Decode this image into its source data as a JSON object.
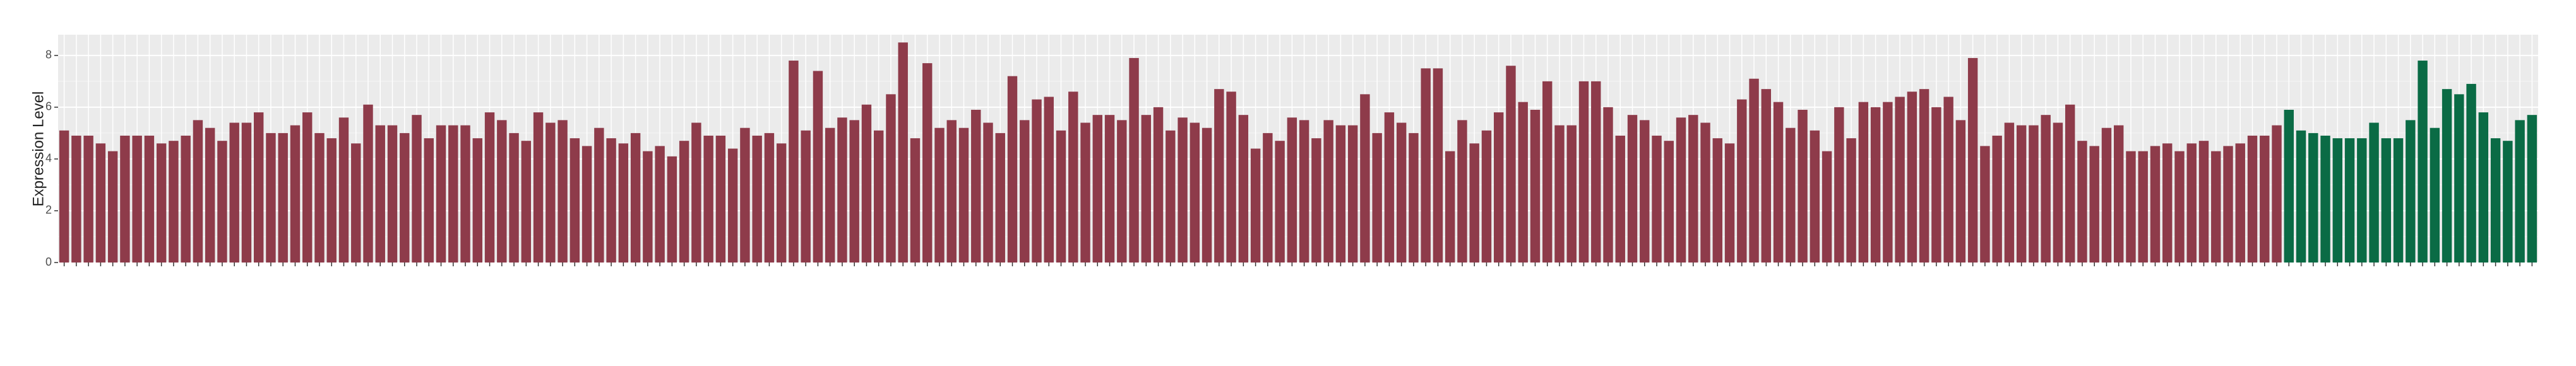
{
  "chart_data": {
    "type": "bar",
    "ylabel": "Expression Level",
    "values": [
      5.1,
      4.9,
      4.9,
      4.6,
      4.3,
      4.9,
      4.9,
      4.9,
      4.6,
      4.7,
      4.9,
      5.5,
      5.2,
      4.7,
      5.4,
      5.4,
      5.8,
      5.0,
      5.0,
      5.3,
      5.8,
      5.0,
      4.8,
      5.6,
      4.6,
      6.1,
      5.3,
      5.3,
      5.0,
      5.7,
      4.8,
      5.3,
      5.3,
      5.3,
      4.8,
      5.8,
      5.5,
      5.0,
      4.7,
      5.8,
      5.4,
      5.5,
      4.8,
      4.5,
      5.2,
      4.8,
      4.6,
      5.0,
      4.3,
      4.5,
      4.1,
      4.7,
      5.4,
      4.9,
      4.9,
      4.4,
      5.2,
      4.9,
      5.0,
      4.6,
      7.8,
      5.1,
      7.4,
      5.2,
      5.6,
      5.5,
      6.1,
      5.1,
      6.5,
      8.5,
      4.8,
      7.7,
      5.2,
      5.5,
      5.2,
      5.9,
      5.4,
      5.0,
      7.2,
      5.5,
      6.3,
      6.4,
      5.1,
      6.6,
      5.4,
      5.7,
      5.7,
      5.5,
      7.9,
      5.7,
      6.0,
      5.1,
      5.6,
      5.4,
      5.2,
      6.7,
      6.6,
      5.7,
      4.4,
      5.0,
      4.7,
      5.6,
      5.5,
      4.8,
      5.5,
      5.3,
      5.3,
      6.5,
      5.0,
      5.8,
      5.4,
      5.0,
      7.5,
      7.5,
      4.3,
      5.5,
      4.6,
      5.1,
      5.8,
      7.6,
      6.2,
      5.9,
      7.0,
      5.3,
      5.3,
      7.0,
      7.0,
      6.0,
      4.9,
      5.7,
      5.5,
      4.9,
      4.7,
      5.6,
      5.7,
      5.4,
      4.8,
      4.6,
      6.3,
      7.1,
      6.7,
      6.2,
      5.2,
      5.9,
      5.1,
      4.3,
      6.0,
      4.8,
      6.2,
      6.0,
      6.2,
      6.4,
      6.6,
      6.7,
      6.0,
      6.4,
      5.5,
      7.9,
      4.5,
      4.9,
      5.4,
      5.3,
      5.3,
      5.7,
      5.4,
      6.1,
      4.7,
      4.5,
      5.2,
      5.3,
      4.3,
      4.3,
      4.5,
      4.6,
      4.3,
      4.6,
      4.7,
      4.3,
      4.5,
      4.6,
      4.9,
      4.9,
      5.3,
      5.9,
      5.1,
      5.0,
      4.9,
      4.8,
      4.8,
      4.8,
      5.4,
      4.8,
      4.8,
      5.5,
      7.8,
      5.2,
      6.7,
      6.5,
      6.9,
      5.8,
      4.8,
      4.7,
      5.5,
      5.7
    ],
    "colors": [
      "#8e3b4a",
      "#8e3b4a",
      "#8e3b4a",
      "#8e3b4a",
      "#8e3b4a",
      "#8e3b4a",
      "#8e3b4a",
      "#8e3b4a",
      "#8e3b4a",
      "#8e3b4a",
      "#8e3b4a",
      "#8e3b4a",
      "#8e3b4a",
      "#8e3b4a",
      "#8e3b4a",
      "#8e3b4a",
      "#8e3b4a",
      "#8e3b4a",
      "#8e3b4a",
      "#8e3b4a",
      "#8e3b4a",
      "#8e3b4a",
      "#8e3b4a",
      "#8e3b4a",
      "#8e3b4a",
      "#8e3b4a",
      "#8e3b4a",
      "#8e3b4a",
      "#8e3b4a",
      "#8e3b4a",
      "#8e3b4a",
      "#8e3b4a",
      "#8e3b4a",
      "#8e3b4a",
      "#8e3b4a",
      "#8e3b4a",
      "#8e3b4a",
      "#8e3b4a",
      "#8e3b4a",
      "#8e3b4a",
      "#8e3b4a",
      "#8e3b4a",
      "#8e3b4a",
      "#8e3b4a",
      "#8e3b4a",
      "#8e3b4a",
      "#8e3b4a",
      "#8e3b4a",
      "#8e3b4a",
      "#8e3b4a",
      "#8e3b4a",
      "#8e3b4a",
      "#8e3b4a",
      "#8e3b4a",
      "#8e3b4a",
      "#8e3b4a",
      "#8e3b4a",
      "#8e3b4a",
      "#8e3b4a",
      "#8e3b4a",
      "#8e3b4a",
      "#8e3b4a",
      "#8e3b4a",
      "#8e3b4a",
      "#8e3b4a",
      "#8e3b4a",
      "#8e3b4a",
      "#8e3b4a",
      "#8e3b4a",
      "#8e3b4a",
      "#8e3b4a",
      "#8e3b4a",
      "#8e3b4a",
      "#8e3b4a",
      "#8e3b4a",
      "#8e3b4a",
      "#8e3b4a",
      "#8e3b4a",
      "#8e3b4a",
      "#8e3b4a",
      "#8e3b4a",
      "#8e3b4a",
      "#8e3b4a",
      "#8e3b4a",
      "#8e3b4a",
      "#8e3b4a",
      "#8e3b4a",
      "#8e3b4a",
      "#8e3b4a",
      "#8e3b4a",
      "#8e3b4a",
      "#8e3b4a",
      "#8e3b4a",
      "#8e3b4a",
      "#8e3b4a",
      "#8e3b4a",
      "#8e3b4a",
      "#8e3b4a",
      "#8e3b4a",
      "#8e3b4a",
      "#8e3b4a",
      "#8e3b4a",
      "#8e3b4a",
      "#8e3b4a",
      "#8e3b4a",
      "#8e3b4a",
      "#8e3b4a",
      "#8e3b4a",
      "#8e3b4a",
      "#8e3b4a",
      "#8e3b4a",
      "#8e3b4a",
      "#8e3b4a",
      "#8e3b4a",
      "#8e3b4a",
      "#8e3b4a",
      "#8e3b4a",
      "#8e3b4a",
      "#8e3b4a",
      "#8e3b4a",
      "#8e3b4a",
      "#8e3b4a",
      "#8e3b4a",
      "#8e3b4a",
      "#8e3b4a",
      "#8e3b4a",
      "#8e3b4a",
      "#8e3b4a",
      "#8e3b4a",
      "#8e3b4a",
      "#8e3b4a",
      "#8e3b4a",
      "#8e3b4a",
      "#8e3b4a",
      "#8e3b4a",
      "#8e3b4a",
      "#8e3b4a",
      "#8e3b4a",
      "#8e3b4a",
      "#8e3b4a",
      "#8e3b4a",
      "#8e3b4a",
      "#8e3b4a",
      "#8e3b4a",
      "#8e3b4a",
      "#8e3b4a",
      "#8e3b4a",
      "#8e3b4a",
      "#8e3b4a",
      "#8e3b4a",
      "#8e3b4a",
      "#8e3b4a",
      "#8e3b4a",
      "#8e3b4a",
      "#8e3b4a",
      "#8e3b4a",
      "#8e3b4a",
      "#8e3b4a",
      "#8e3b4a",
      "#8e3b4a",
      "#8e3b4a",
      "#8e3b4a",
      "#8e3b4a",
      "#8e3b4a",
      "#8e3b4a",
      "#8e3b4a",
      "#8e3b4a",
      "#8e3b4a",
      "#8e3b4a",
      "#8e3b4a",
      "#8e3b4a",
      "#8e3b4a",
      "#8e3b4a",
      "#8e3b4a",
      "#8e3b4a",
      "#8e3b4a",
      "#8e3b4a",
      "#8e3b4a",
      "#8e3b4a",
      "#8e3b4a",
      "#8e3b4a",
      "#8e3b4a",
      "#8e3b4a",
      "#0a6b45",
      "#0a6b45",
      "#0a6b45",
      "#0a6b45",
      "#0a6b45",
      "#0a6b45",
      "#0a6b45",
      "#0a6b45",
      "#0a6b45",
      "#0a6b45",
      "#0a6b45",
      "#0a6b45",
      "#0a6b45",
      "#0a6b45",
      "#0a6b45",
      "#0a6b45",
      "#0a6b45",
      "#0a6b45",
      "#0a6b45",
      "#0a6b45",
      "#0a6b45"
    ],
    "ylim": [
      0,
      8.8
    ],
    "yticks": [
      0,
      2,
      4,
      6,
      8
    ],
    "grid": true
  }
}
